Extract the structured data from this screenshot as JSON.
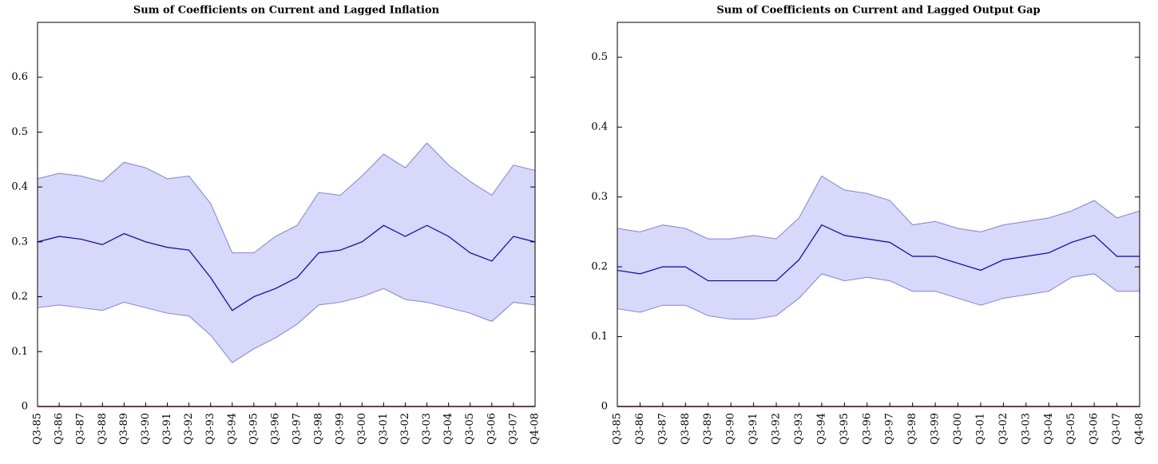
{
  "chart_data": [
    {
      "type": "band-line",
      "title": "Sum of Coefficients on Current and Lagged Inflation",
      "categories": [
        "Q3-85",
        "Q3-86",
        "Q3-87",
        "Q3-88",
        "Q3-89",
        "Q3-90",
        "Q3-91",
        "Q3-92",
        "Q3-93",
        "Q3-94",
        "Q3-95",
        "Q3-96",
        "Q3-97",
        "Q3-98",
        "Q3-99",
        "Q3-00",
        "Q3-01",
        "Q3-02",
        "Q3-03",
        "Q3-04",
        "Q3-05",
        "Q3-06",
        "Q3-07",
        "Q4-08"
      ],
      "values": [
        0.3,
        0.31,
        0.305,
        0.295,
        0.315,
        0.3,
        0.29,
        0.285,
        0.235,
        0.175,
        0.2,
        0.215,
        0.235,
        0.28,
        0.285,
        0.3,
        0.33,
        0.31,
        0.33,
        0.31,
        0.28,
        0.265,
        0.31,
        0.3
      ],
      "color": "#0000c8",
      "band_upper": [
        0.415,
        0.425,
        0.42,
        0.41,
        0.445,
        0.435,
        0.415,
        0.42,
        0.37,
        0.28,
        0.28,
        0.31,
        0.33,
        0.39,
        0.385,
        0.42,
        0.46,
        0.435,
        0.48,
        0.44,
        0.41,
        0.385,
        0.44,
        0.43
      ],
      "band_lower": [
        0.18,
        0.185,
        0.18,
        0.175,
        0.19,
        0.18,
        0.17,
        0.165,
        0.13,
        0.08,
        0.105,
        0.125,
        0.15,
        0.185,
        0.19,
        0.2,
        0.215,
        0.195,
        0.19,
        0.18,
        0.17,
        0.155,
        0.19,
        0.185
      ],
      "band_color": "#d8d8fa",
      "band_edge_color": "#8080e8",
      "hline": 0,
      "hline_color": "#c00000",
      "ylim": [
        0,
        0.7
      ],
      "yticks": [
        0,
        0.1,
        0.2,
        0.3,
        0.4,
        0.5,
        0.6
      ]
    },
    {
      "type": "band-line",
      "title": "Sum of Coefficients on Current and Lagged Output Gap",
      "categories": [
        "Q3-85",
        "Q3-86",
        "Q3-87",
        "Q3-88",
        "Q3-89",
        "Q3-90",
        "Q3-91",
        "Q3-92",
        "Q3-93",
        "Q3-94",
        "Q3-95",
        "Q3-96",
        "Q3-97",
        "Q3-98",
        "Q3-99",
        "Q3-00",
        "Q3-01",
        "Q3-02",
        "Q3-03",
        "Q3-04",
        "Q3-05",
        "Q3-06",
        "Q3-07",
        "Q4-08"
      ],
      "values": [
        0.195,
        0.19,
        0.2,
        0.2,
        0.18,
        0.18,
        0.18,
        0.18,
        0.21,
        0.26,
        0.245,
        0.24,
        0.235,
        0.215,
        0.215,
        0.205,
        0.195,
        0.21,
        0.215,
        0.22,
        0.235,
        0.245,
        0.215,
        0.215
      ],
      "color": "#0000c8",
      "band_upper": [
        0.255,
        0.25,
        0.26,
        0.255,
        0.24,
        0.24,
        0.245,
        0.24,
        0.27,
        0.33,
        0.31,
        0.305,
        0.295,
        0.26,
        0.265,
        0.255,
        0.25,
        0.26,
        0.265,
        0.27,
        0.28,
        0.295,
        0.27,
        0.28
      ],
      "band_lower": [
        0.14,
        0.135,
        0.145,
        0.145,
        0.13,
        0.125,
        0.125,
        0.13,
        0.155,
        0.19,
        0.18,
        0.185,
        0.18,
        0.165,
        0.165,
        0.155,
        0.145,
        0.155,
        0.16,
        0.165,
        0.185,
        0.19,
        0.165,
        0.165
      ],
      "band_color": "#d8d8fa",
      "band_edge_color": "#8080e8",
      "hline": 0,
      "hline_color": "#c00000",
      "ylim": [
        0,
        0.55
      ],
      "yticks": [
        0,
        0.1,
        0.2,
        0.3,
        0.4,
        0.5
      ]
    }
  ]
}
